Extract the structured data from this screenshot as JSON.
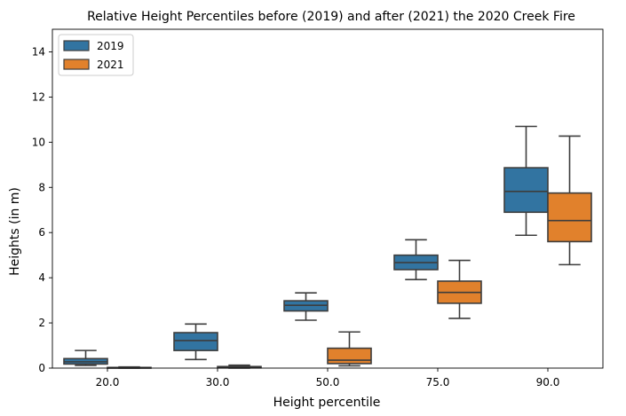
{
  "chart_data": {
    "type": "box",
    "title": "Relative Height Percentiles before (2019) and after (2021) the 2020 Creek Fire",
    "xlabel": "Height percentile",
    "ylabel": "Heights (in m)",
    "ylim": [
      0,
      15
    ],
    "yticks": [
      0,
      2,
      4,
      6,
      8,
      10,
      12,
      14
    ],
    "categories": [
      "20.0",
      "30.0",
      "50.0",
      "75.0",
      "90.0"
    ],
    "legend_position": "top-left",
    "grid": false,
    "series": [
      {
        "name": "2019",
        "color": "#3274a1",
        "boxes": [
          {
            "whisker_low": 0.12,
            "q1": 0.18,
            "median": 0.28,
            "q3": 0.42,
            "whisker_high": 0.78
          },
          {
            "whisker_low": 0.38,
            "q1": 0.78,
            "median": 1.22,
            "q3": 1.57,
            "whisker_high": 1.95
          },
          {
            "whisker_low": 2.12,
            "q1": 2.53,
            "median": 2.78,
            "q3": 2.98,
            "whisker_high": 3.33
          },
          {
            "whisker_low": 3.92,
            "q1": 4.36,
            "median": 4.67,
            "q3": 5.0,
            "whisker_high": 5.68
          },
          {
            "whisker_low": 5.88,
            "q1": 6.9,
            "median": 7.82,
            "q3": 8.87,
            "whisker_high": 10.7
          }
        ]
      },
      {
        "name": "2021",
        "color": "#e1812c",
        "boxes": [
          {
            "whisker_low": 0.0,
            "q1": 0.0,
            "median": 0.01,
            "q3": 0.03,
            "whisker_high": 0.05
          },
          {
            "whisker_low": 0.0,
            "q1": 0.01,
            "median": 0.03,
            "q3": 0.07,
            "whisker_high": 0.13
          },
          {
            "whisker_low": 0.1,
            "q1": 0.2,
            "median": 0.35,
            "q3": 0.88,
            "whisker_high": 1.6
          },
          {
            "whisker_low": 2.2,
            "q1": 2.87,
            "median": 3.35,
            "q3": 3.85,
            "whisker_high": 4.77
          },
          {
            "whisker_low": 4.58,
            "q1": 5.6,
            "median": 6.53,
            "q3": 7.75,
            "whisker_high": 10.27
          }
        ]
      }
    ]
  }
}
